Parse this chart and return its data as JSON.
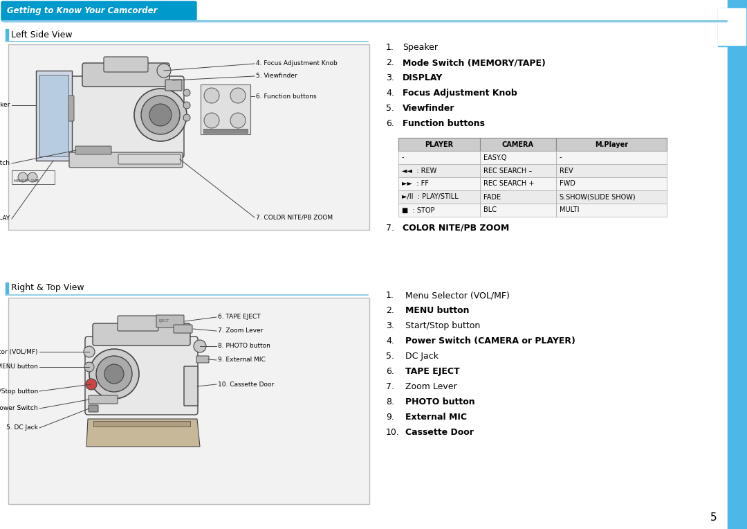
{
  "page_bg": "#ffffff",
  "content_bg": "#ffffff",
  "header_bar_color": "#0099cc",
  "header_text": "Getting to Know Your Camcorder",
  "header_text_color": "#ffffff",
  "side_bar_color": "#4db8e8",
  "section_line_color": "#7ec8e3",
  "left_section_title": "Left Side View",
  "right_section_title": "Right & Top View",
  "table_headers": [
    "PLAYER",
    "CAMERA",
    "M.Player"
  ],
  "table_rows": [
    [
      "-",
      "EASY.Q",
      "-"
    ],
    [
      "◄◄  : REW",
      "REC SEARCH –",
      "REV"
    ],
    [
      "►►  : FF",
      "REC SEARCH +",
      "FWD"
    ],
    [
      "►/II  : PLAY/STILL",
      "FADE",
      "S.SHOW(SLIDE SHOW)"
    ],
    [
      "■  : STOP",
      "BLC",
      "MULTI"
    ]
  ],
  "right_top_items": [
    [
      "1.",
      "Speaker",
      false
    ],
    [
      "2.",
      "Mode Switch (MEMORY/TAPE)",
      true
    ],
    [
      "3.",
      "DISPLAY",
      true
    ],
    [
      "4.",
      "Focus Adjustment Knob",
      true
    ],
    [
      "5.",
      "Viewfinder",
      true
    ],
    [
      "6.",
      "Function buttons",
      true
    ]
  ],
  "right_bottom_items": [
    [
      "1.",
      "Menu Selector (VOL/MF)",
      false
    ],
    [
      "2.",
      "MENU button",
      true
    ],
    [
      "3.",
      "Start/Stop button",
      false
    ],
    [
      "4.",
      "Power Switch (CAMERA or PLAYER)",
      true
    ],
    [
      "5.",
      "DC Jack",
      false
    ],
    [
      "6.",
      "TAPE EJECT",
      true
    ],
    [
      "7.",
      "Zoom Lever",
      false
    ],
    [
      "8.",
      "PHOTO button",
      true
    ],
    [
      "9.",
      "External MIC",
      true
    ],
    [
      "10.",
      "Cassette Door",
      true
    ]
  ],
  "page_number": "5"
}
